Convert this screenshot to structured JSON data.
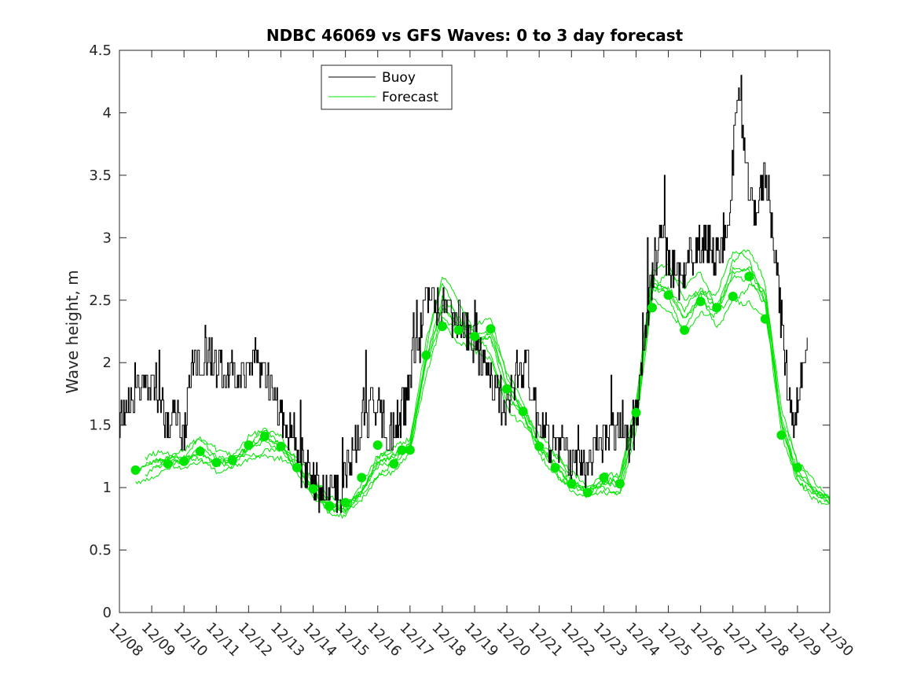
{
  "chart_data": {
    "type": "line",
    "title": "NDBC 46069 vs GFS Waves: 0 to 3 day forecast",
    "xlabel": "",
    "ylabel": "Wave height, m",
    "xlim": [
      0,
      22
    ],
    "ylim": [
      0,
      4.5
    ],
    "x_tick_labels": [
      "12/08",
      "12/09",
      "12/10",
      "12/11",
      "12/12",
      "12/13",
      "12/14",
      "12/15",
      "12/16",
      "12/17",
      "12/18",
      "12/19",
      "12/20",
      "12/21",
      "12/22",
      "12/23",
      "12/24",
      "12/25",
      "12/26",
      "12/27",
      "12/28",
      "12/29",
      "12/30"
    ],
    "y_ticks": [
      0,
      0.5,
      1,
      1.5,
      2,
      2.5,
      3,
      3.5,
      4,
      4.5
    ],
    "y_tick_labels": [
      "0",
      "0.5",
      "1",
      "1.5",
      "2",
      "2.5",
      "3",
      "3.5",
      "4",
      "4.5"
    ],
    "legend": {
      "position": "top-left",
      "entries": [
        {
          "label": "Buoy",
          "color": "#000000"
        },
        {
          "label": "Forecast",
          "color": "#00e600"
        }
      ]
    },
    "colors": {
      "buoy": "#000000",
      "forecast": "#00e600"
    },
    "buoy_anchor": {
      "x": [
        0,
        0.2,
        0.5,
        0.8,
        1.0,
        1.3,
        1.5,
        1.8,
        2.0,
        2.2,
        2.5,
        2.8,
        3.0,
        3.3,
        3.6,
        4.0,
        4.3,
        4.6,
        4.8,
        5.0,
        5.2,
        5.4,
        5.7,
        6.0,
        6.3,
        6.6,
        6.9,
        7.2,
        7.5,
        7.8,
        8.0,
        8.2,
        8.5,
        8.8,
        9.0,
        9.3,
        9.5,
        9.7,
        9.9,
        10.2,
        10.5,
        10.8,
        11.1,
        11.4,
        11.7,
        12.0,
        12.3,
        12.6,
        12.9,
        13.2,
        13.5,
        13.8,
        14.1,
        14.4,
        14.7,
        15.0,
        15.3,
        15.6,
        15.8,
        16.0,
        16.2,
        16.4,
        16.6,
        16.8,
        17.0,
        17.3,
        17.6,
        17.9,
        18.2,
        18.5,
        18.8,
        19.0,
        19.2,
        19.4,
        19.6,
        19.8,
        20.0,
        20.2,
        20.4,
        20.6,
        20.8,
        20.9,
        21.0,
        21.2,
        21.3
      ],
      "y": [
        1.55,
        1.65,
        1.8,
        1.75,
        1.85,
        1.7,
        1.5,
        1.6,
        1.45,
        1.9,
        2.05,
        2.1,
        2.0,
        1.95,
        1.9,
        1.95,
        2.0,
        1.9,
        1.75,
        1.55,
        1.45,
        1.35,
        1.15,
        1.05,
        1.0,
        1.0,
        0.95,
        1.25,
        1.5,
        1.65,
        1.7,
        1.5,
        1.45,
        1.6,
        1.9,
        2.2,
        2.5,
        2.55,
        2.4,
        2.35,
        2.3,
        2.25,
        2.1,
        1.9,
        1.75,
        1.6,
        1.95,
        2.0,
        1.6,
        1.45,
        1.35,
        1.3,
        1.15,
        1.1,
        1.3,
        1.4,
        1.45,
        1.5,
        1.35,
        1.6,
        2.0,
        2.5,
        2.85,
        3.0,
        2.8,
        2.65,
        2.85,
        2.9,
        2.95,
        2.85,
        3.05,
        3.6,
        4.2,
        3.5,
        3.2,
        3.3,
        3.55,
        3.15,
        2.6,
        2.05,
        1.6,
        1.55,
        1.75,
        1.95,
        2.1
      ],
      "noise_amplitude": 0.18
    },
    "forecast_anchor": {
      "x": [
        0.5,
        1.0,
        1.5,
        2.0,
        2.5,
        3.0,
        3.5,
        4.0,
        4.5,
        5.0,
        5.5,
        6.0,
        6.5,
        7.0,
        7.5,
        8.0,
        8.5,
        9.0,
        9.5,
        10.0,
        10.5,
        11.0,
        11.5,
        12.0,
        12.5,
        13.0,
        13.5,
        14.0,
        14.5,
        15.0,
        15.5,
        16.0,
        16.5,
        17.0,
        17.5,
        18.0,
        18.5,
        19.0,
        19.5,
        20.0,
        20.5,
        21.0,
        21.5,
        22.0
      ],
      "y": [
        1.14,
        1.2,
        1.21,
        1.2,
        1.28,
        1.2,
        1.22,
        1.34,
        1.4,
        1.33,
        1.16,
        0.98,
        0.84,
        0.82,
        0.98,
        1.2,
        1.25,
        1.32,
        2.0,
        2.45,
        2.3,
        2.22,
        2.24,
        1.82,
        1.6,
        1.32,
        1.16,
        1.03,
        0.97,
        1.05,
        1.05,
        1.6,
        2.6,
        2.55,
        2.35,
        2.55,
        2.45,
        2.75,
        2.75,
        2.5,
        1.5,
        1.1,
        0.97,
        0.9
      ],
      "member_offsets": [
        0.0,
        0.06,
        -0.05,
        0.1,
        -0.09,
        0.03,
        -0.02
      ],
      "member_spread_scale": 1.0
    },
    "forecast_markers": {
      "x": [
        0.5,
        1.5,
        2.0,
        2.5,
        3.0,
        3.5,
        4.0,
        4.5,
        5.0,
        5.5,
        6.0,
        6.5,
        7.0,
        7.5,
        8.0,
        8.5,
        8.75,
        9.0,
        9.5,
        10.0,
        10.5,
        11.0,
        11.5,
        12.0,
        12.5,
        13.0,
        13.5,
        14.0,
        14.5,
        15.0,
        15.5,
        16.0,
        16.5,
        17.0,
        17.5,
        18.0,
        18.5,
        19.0,
        19.5,
        20.0,
        20.5,
        21.0
      ],
      "y": [
        1.14,
        1.19,
        1.21,
        1.29,
        1.2,
        1.22,
        1.34,
        1.41,
        1.33,
        1.16,
        0.99,
        0.85,
        0.88,
        1.08,
        1.34,
        1.19,
        1.3,
        1.3,
        2.06,
        2.29,
        2.26,
        2.21,
        2.27,
        1.79,
        1.61,
        1.33,
        1.16,
        1.03,
        0.96,
        1.08,
        1.03,
        1.6,
        2.44,
        2.54,
        2.26,
        2.49,
        2.44,
        2.53,
        2.69,
        2.35,
        1.42,
        1.16
      ]
    }
  }
}
